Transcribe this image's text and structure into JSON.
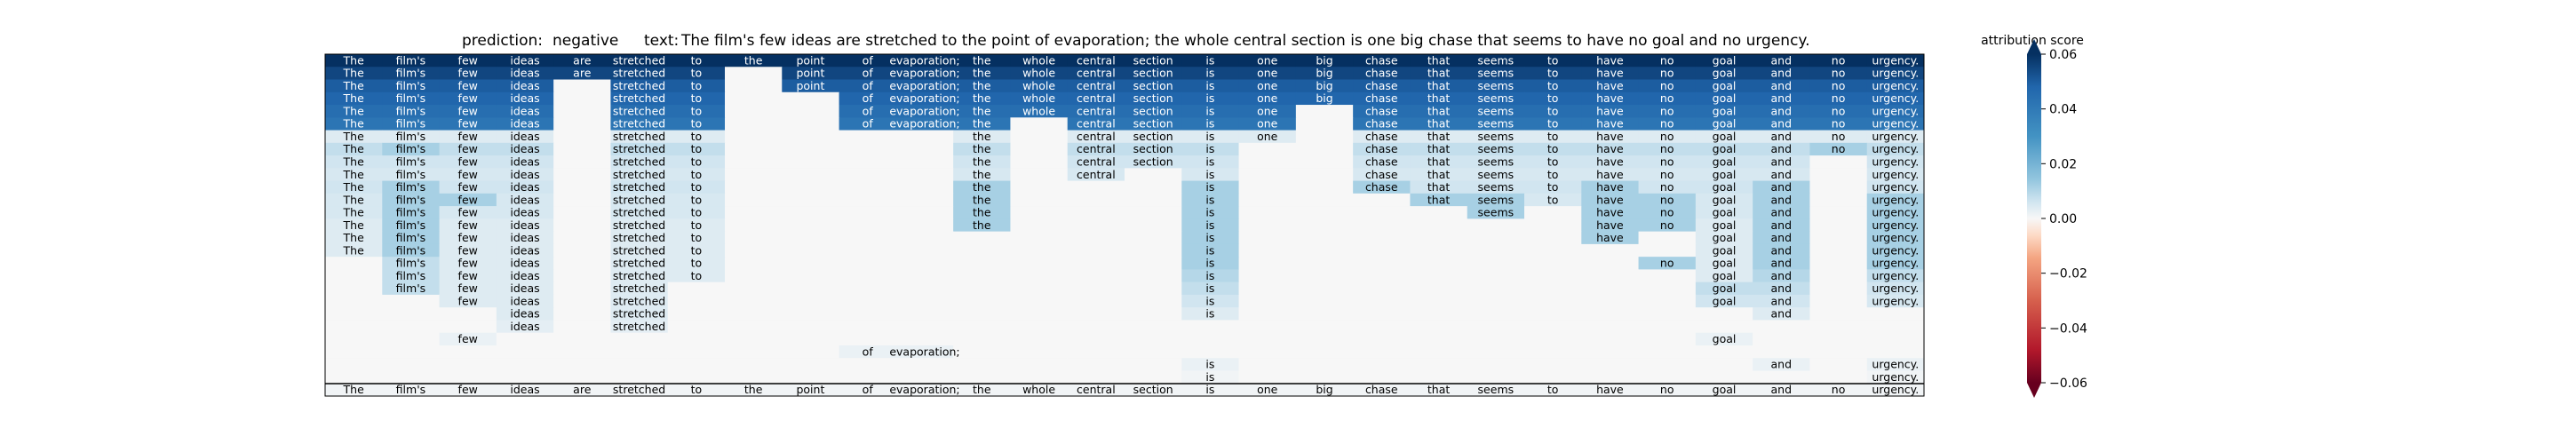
{
  "title": {
    "prediction_label": "prediction:",
    "prediction_value": "negative",
    "text_label": "text:",
    "text_value": "The film's few ideas are stretched to the point of evaporation; the whole central section is one big chase that seems to have no goal and no urgency."
  },
  "colorbar": {
    "title": "attribution score",
    "min": -0.06,
    "max": 0.06,
    "ticks": [
      0.06,
      0.04,
      0.02,
      0.0,
      -0.02,
      -0.04,
      -0.06
    ],
    "tick_labels": [
      "0.06",
      "0.04",
      "0.02",
      "0.00",
      "−0.02",
      "−0.04",
      "−0.06"
    ],
    "colormap": "RdBu",
    "extend": "both"
  },
  "chart_data": {
    "type": "heatmap",
    "tokens": [
      "The",
      "film's",
      "few",
      "ideas",
      "are",
      "stretched",
      "to",
      "the",
      "point",
      "of",
      "evaporation;",
      "the",
      "whole",
      "central",
      "section",
      "is",
      "one",
      "big",
      "chase",
      "that",
      "seems",
      "to",
      "have",
      "no",
      "goal",
      "and",
      "no",
      "urgency."
    ],
    "rows": [
      {
        "tokens": "TTTTTTTTTTTTTTTTTTTTTTTTTTTT",
        "scores": [
          0.06,
          0.06,
          0.06,
          0.06,
          0.06,
          0.06,
          0.06,
          0.06,
          0.06,
          0.06,
          0.06,
          0.06,
          0.06,
          0.06,
          0.06,
          0.06,
          0.06,
          0.06,
          0.06,
          0.06,
          0.06,
          0.06,
          0.06,
          0.06,
          0.06,
          0.06,
          0.06,
          0.06
        ]
      },
      {
        "tokens": "TTTTTTTFTTTTTTTTTTTTTTTTTTTT",
        "scores": [
          0.055,
          0.055,
          0.055,
          0.055,
          0.055,
          0.055,
          0.055,
          0,
          0.055,
          0.055,
          0.055,
          0.055,
          0.055,
          0.055,
          0.055,
          0.055,
          0.055,
          0.055,
          0.055,
          0.055,
          0.055,
          0.055,
          0.055,
          0.055,
          0.055,
          0.055,
          0.055,
          0.055
        ]
      },
      {
        "tokens": "TTTTFTTFTTTTTTTTTTTTTTTTTTTT",
        "scores": [
          0.05,
          0.05,
          0.05,
          0.05,
          0,
          0.05,
          0.05,
          0,
          0.05,
          0.05,
          0.05,
          0.05,
          0.05,
          0.05,
          0.05,
          0.05,
          0.05,
          0.05,
          0.05,
          0.05,
          0.05,
          0.05,
          0.05,
          0.05,
          0.05,
          0.05,
          0.05,
          0.05
        ]
      },
      {
        "tokens": "TTTTFTTFFTTTTTTTTTTTTTTTTTTT",
        "scores": [
          0.048,
          0.048,
          0.048,
          0.048,
          0,
          0.048,
          0.048,
          0,
          0,
          0.048,
          0.048,
          0.048,
          0.048,
          0.048,
          0.048,
          0.048,
          0.048,
          0.048,
          0.048,
          0.048,
          0.048,
          0.048,
          0.048,
          0.048,
          0.048,
          0.048,
          0.048,
          0.048
        ]
      },
      {
        "tokens": "TTTTFTTFFTTTTTTTTFTTTTTTTTTT",
        "scores": [
          0.045,
          0.045,
          0.045,
          0.045,
          0,
          0.045,
          0.045,
          0,
          0,
          0.045,
          0.045,
          0.045,
          0.045,
          0.045,
          0.045,
          0.045,
          0.045,
          0,
          0.045,
          0.045,
          0.045,
          0.045,
          0.045,
          0.045,
          0.045,
          0.045,
          0.045,
          0.045
        ]
      },
      {
        "tokens": "TTTTFTTFFTTTFTTTTFTTTTTTTTTT",
        "scores": [
          0.042,
          0.042,
          0.042,
          0.042,
          0,
          0.042,
          0.042,
          0,
          0,
          0.042,
          0.042,
          0.042,
          0,
          0.042,
          0.042,
          0.042,
          0.042,
          0,
          0.042,
          0.042,
          0.042,
          0.042,
          0.042,
          0.042,
          0.042,
          0.042,
          0.042,
          0.042
        ]
      },
      {
        "tokens": "TTTTFTTFFFFTFTTTTFTTTTTTTTTT",
        "scores": [
          0.004,
          0.004,
          0.004,
          0.004,
          0,
          0.004,
          0.004,
          0,
          0,
          0,
          0,
          0.004,
          0,
          0.004,
          0.004,
          0.004,
          0.004,
          0,
          0.004,
          0.004,
          0.004,
          0.004,
          0.004,
          0.004,
          0.004,
          0.004,
          0.004,
          0.004
        ]
      },
      {
        "tokens": "TTTTFTTFFFFTFTTTFFTTTTTTTTTT",
        "scores": [
          0.008,
          0.012,
          0.008,
          0.008,
          0,
          0.008,
          0.008,
          0,
          0,
          0,
          0,
          0.008,
          0,
          0.008,
          0.008,
          0.008,
          0,
          0,
          0.008,
          0.008,
          0.008,
          0.008,
          0.008,
          0.008,
          0.008,
          0.008,
          0.012,
          0.008
        ]
      },
      {
        "tokens": "TTTTFTTFFFFTFTTTFFTTTTTTTTFT",
        "scores": [
          0.006,
          0.006,
          0.006,
          0.006,
          0,
          0.006,
          0.006,
          0,
          0,
          0,
          0,
          0.006,
          0,
          0.006,
          0.006,
          0.006,
          0,
          0,
          0.006,
          0.006,
          0.006,
          0.006,
          0.006,
          0.006,
          0.006,
          0.006,
          0,
          0.006
        ]
      },
      {
        "tokens": "TTTTFTTFFFFTFTFTFFTTTTTTTTFT",
        "scores": [
          0.005,
          0.005,
          0.005,
          0.005,
          0,
          0.005,
          0.005,
          0,
          0,
          0,
          0,
          0.005,
          0,
          0.005,
          0,
          0.005,
          0,
          0,
          0.005,
          0.005,
          0.005,
          0.005,
          0.005,
          0.005,
          0.005,
          0.005,
          0,
          0.005
        ]
      },
      {
        "tokens": "TTTTFTTFFFFTFFFTFFTTTTTTTTFT",
        "scores": [
          0.006,
          0.012,
          0.006,
          0.006,
          0,
          0.006,
          0.006,
          0,
          0,
          0,
          0,
          0.012,
          0,
          0,
          0,
          0.012,
          0,
          0,
          0.012,
          0.006,
          0.006,
          0.006,
          0.012,
          0.006,
          0.006,
          0.012,
          0,
          0.006
        ]
      },
      {
        "tokens": "TTTTFTTFFFFTFFFTFFFTTTTTTTFT",
        "scores": [
          0.005,
          0.012,
          0.012,
          0.005,
          0,
          0.005,
          0.005,
          0,
          0,
          0,
          0,
          0.012,
          0,
          0,
          0,
          0.012,
          0,
          0,
          0,
          0.012,
          0.012,
          0.005,
          0.012,
          0.012,
          0.005,
          0.012,
          0,
          0.012
        ]
      },
      {
        "tokens": "TTTTFTTFFFFTFFFTFFFFTFTTTTFT",
        "scores": [
          0.005,
          0.012,
          0.005,
          0.005,
          0,
          0.005,
          0.005,
          0,
          0,
          0,
          0,
          0.012,
          0,
          0,
          0,
          0.012,
          0,
          0,
          0,
          0,
          0.012,
          0,
          0.012,
          0.012,
          0.005,
          0.012,
          0,
          0.012
        ]
      },
      {
        "tokens": "TTTTFTTFFFFTFFFTFFFFFFTTTTFT",
        "scores": [
          0.004,
          0.012,
          0.004,
          0.004,
          0,
          0.004,
          0.004,
          0,
          0,
          0,
          0,
          0.012,
          0,
          0,
          0,
          0.012,
          0,
          0,
          0,
          0,
          0,
          0,
          0.012,
          0.012,
          0.004,
          0.012,
          0,
          0.012
        ]
      },
      {
        "tokens": "TTTTFTTFFFFFFFFTFFFFFFTFTTFT",
        "scores": [
          0.004,
          0.012,
          0.004,
          0.004,
          0,
          0.004,
          0.004,
          0,
          0,
          0,
          0,
          0,
          0,
          0,
          0,
          0.012,
          0,
          0,
          0,
          0,
          0,
          0,
          0.012,
          0,
          0.004,
          0.012,
          0,
          0.012
        ]
      },
      {
        "tokens": "TTTTFTTFFFFFFFFTFFFFFFFFTTFT",
        "scores": [
          0.004,
          0.012,
          0.004,
          0.004,
          0,
          0.004,
          0.004,
          0,
          0,
          0,
          0,
          0,
          0,
          0,
          0,
          0.012,
          0,
          0,
          0,
          0,
          0,
          0,
          0,
          0,
          0.004,
          0.012,
          0,
          0.012
        ]
      },
      {
        "tokens": "FTTTFTTFFFFFFFFTFFFFFFFTTTFT",
        "scores": [
          0,
          0.008,
          0.004,
          0.004,
          0,
          0.004,
          0.004,
          0,
          0,
          0,
          0,
          0,
          0,
          0,
          0,
          0.012,
          0,
          0,
          0,
          0,
          0,
          0,
          0,
          0.012,
          0.004,
          0.012,
          0,
          0.012
        ]
      },
      {
        "tokens": "FTTTFTTFFFFFFFFTFFFFFFFFTTFT",
        "scores": [
          0,
          0.008,
          0.004,
          0.004,
          0,
          0.004,
          0.004,
          0,
          0,
          0,
          0,
          0,
          0,
          0,
          0,
          0.01,
          0,
          0,
          0,
          0,
          0,
          0,
          0,
          0,
          0.004,
          0.01,
          0,
          0.008
        ]
      },
      {
        "tokens": "FTTTFTFFFFFFFFFTFFFFFFFFTTFT",
        "scores": [
          0,
          0.008,
          0.004,
          0.004,
          0,
          0.004,
          0,
          0,
          0,
          0,
          0,
          0,
          0,
          0,
          0,
          0.008,
          0,
          0,
          0,
          0,
          0,
          0,
          0,
          0,
          0.008,
          0.008,
          0,
          0.006
        ]
      },
      {
        "tokens": "FFTTFTFFFFFFFFFTFFFFFFFFTTFT",
        "scores": [
          0,
          0,
          0.004,
          0.004,
          0,
          0.004,
          0,
          0,
          0,
          0,
          0,
          0,
          0,
          0,
          0,
          0.006,
          0,
          0,
          0,
          0,
          0,
          0,
          0,
          0,
          0.006,
          0.006,
          0,
          0.005
        ]
      },
      {
        "tokens": "FFFTFTFFFFFFFFFTFFFFFFFFFTFF",
        "scores": [
          0,
          0,
          0,
          0.004,
          0,
          0.004,
          0,
          0,
          0,
          0,
          0,
          0,
          0,
          0,
          0,
          0.004,
          0,
          0,
          0,
          0,
          0,
          0,
          0,
          0,
          0,
          0.004,
          0,
          0
        ]
      },
      {
        "tokens": "FFFTFTFFFFFFFFFFFFFFFFFFFFFF",
        "scores": [
          0,
          0,
          0,
          0.003,
          0,
          0.003,
          0,
          0,
          0,
          0,
          0,
          0,
          0,
          0,
          0,
          0,
          0,
          0,
          0,
          0,
          0,
          0,
          0,
          0,
          0,
          0,
          0,
          0
        ]
      },
      {
        "tokens": "FFTFFFFFFFFFFFFFFFFFFFFFTFFF",
        "scores": [
          0,
          0,
          0.002,
          0,
          0,
          0,
          0,
          0,
          0,
          0,
          0,
          0,
          0,
          0,
          0,
          0,
          0,
          0,
          0,
          0,
          0,
          0,
          0,
          0,
          0.002,
          0,
          0,
          0
        ]
      },
      {
        "tokens": "FFFFFFFFFTTFFFFFFFFFFFFFFFFF",
        "scores": [
          0,
          0,
          0,
          0,
          0,
          0,
          0,
          0,
          0,
          0.002,
          0.002,
          0,
          0,
          0,
          0,
          0,
          0,
          0,
          0,
          0,
          0,
          0,
          0,
          0,
          0,
          0,
          0,
          0
        ]
      },
      {
        "tokens": "FFFFFFFFFFFFFFFTFFFFFFFFFTFT",
        "scores": [
          0,
          0,
          0,
          0,
          0,
          0,
          0,
          0,
          0,
          0,
          0,
          0,
          0,
          0,
          0,
          0.002,
          0,
          0,
          0,
          0,
          0,
          0,
          0,
          0,
          0,
          0.002,
          0,
          0.002
        ]
      },
      {
        "tokens": "FFFFFFFFFFFFFFFTFFFFFFFFFFFT",
        "scores": [
          0,
          0,
          0,
          0,
          0,
          0,
          0,
          0,
          0,
          0,
          0,
          0,
          0,
          0,
          0,
          0.001,
          0,
          0,
          0,
          0,
          0,
          0,
          0,
          0,
          0,
          0,
          0,
          0.001
        ]
      },
      {
        "tokens": "TTTTTTTTTTTTTTTTTTTTTTTTTTTT",
        "scores": [
          0.001,
          0.001,
          0.001,
          0.001,
          0.001,
          0.001,
          0.001,
          0.001,
          0.001,
          0.001,
          0.001,
          0.001,
          0.001,
          0.001,
          0.001,
          0.001,
          0.001,
          0.001,
          0.001,
          0.001,
          0.001,
          0.001,
          0.001,
          0.001,
          0.001,
          0.001,
          0.001,
          0.001
        ]
      }
    ]
  }
}
